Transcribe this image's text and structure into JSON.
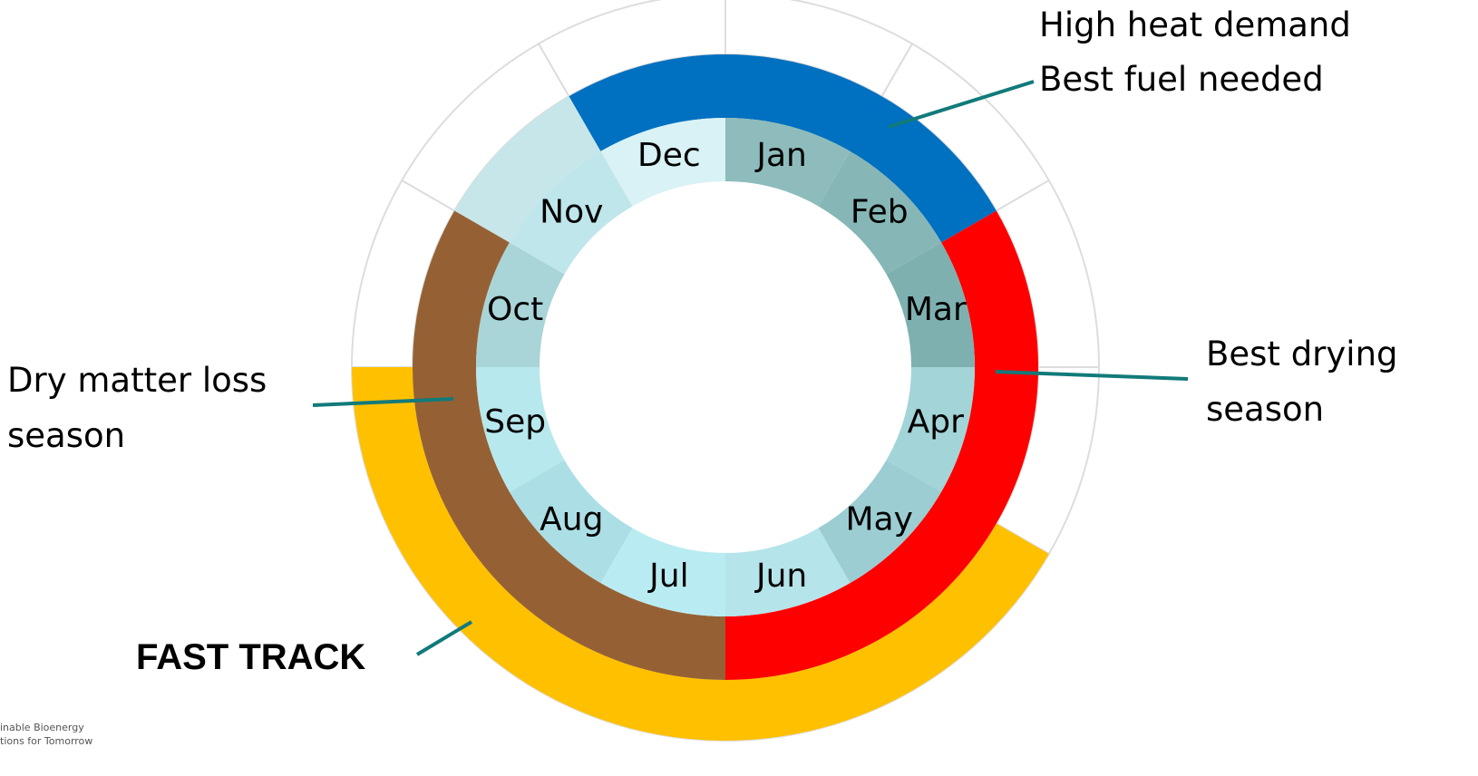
{
  "months": [
    "Jan",
    "Feb",
    "Mar",
    "Apr",
    "May",
    "Jun",
    "Jul",
    "Aug",
    "Sep",
    "Oct",
    "Nov",
    "Dec"
  ],
  "annotations": {
    "heat": [
      "High heat demand",
      "Best fuel needed"
    ],
    "drying": [
      "Best drying",
      "season"
    ],
    "loss": [
      "Dry matter loss",
      "season"
    ],
    "fast_track": "FAST TRACK"
  },
  "logo": [
    "inable Bioenergy",
    "tions for Tomorrow"
  ]
}
